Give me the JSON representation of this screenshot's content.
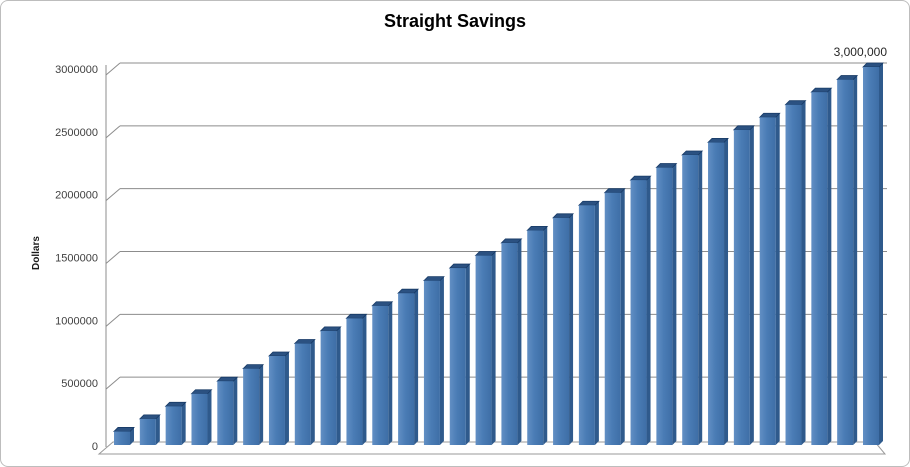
{
  "chart_data": {
    "type": "bar",
    "title": "Straight Savings",
    "xlabel": "",
    "ylabel": "Dollars",
    "ylim": [
      0,
      3000000
    ],
    "ytick_values": [
      0,
      500000,
      1000000,
      1500000,
      2000000,
      2500000,
      3000000
    ],
    "ytick_labels": [
      "0",
      "500000",
      "1000000",
      "1500000",
      "2000000",
      "2500000",
      "3000000"
    ],
    "x_axis_labels_visible": false,
    "grid": true,
    "legend_position": "none",
    "style": "excel-3d-column",
    "values": [
      100000,
      200000,
      300000,
      400000,
      500000,
      600000,
      700000,
      800000,
      900000,
      1000000,
      1100000,
      1200000,
      1300000,
      1400000,
      1500000,
      1600000,
      1700000,
      1800000,
      1900000,
      2000000,
      2100000,
      2200000,
      2300000,
      2400000,
      2500000,
      2600000,
      2700000,
      2800000,
      2900000,
      3000000
    ],
    "annotation": {
      "text": "3,000,000",
      "bar_index": 29,
      "position": "above-last-bar"
    },
    "colors": {
      "bar_front": "#4A7CB5",
      "bar_front_light": "#628FC4",
      "bar_front_dark": "#3E6EA6",
      "bar_side": "#2F5A8C",
      "bar_top": "#2B5181",
      "bar_top_edge": "#173A66",
      "gridline": "#8C8C8C",
      "axis": "#8C8C8C",
      "floor_stroke": "#999999",
      "floor_fill": "#FFFFFF",
      "tick_text": "#3F3F3F",
      "title_text": "#000000",
      "frame_border": "#BDBDBD"
    }
  }
}
